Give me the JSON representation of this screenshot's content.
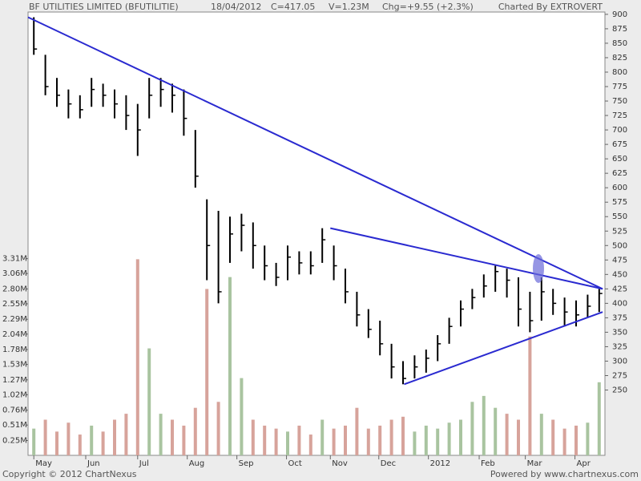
{
  "chart_data": {
    "type": "ohlc-volume",
    "title": "BF UTILITIES LIMITED (BFUTILITIE)",
    "date": "18/04/2012",
    "close_label": "C=417.05",
    "volume_label": "V=1.23M",
    "change_label": "Chg=+9.55 (+2.3%)",
    "credit": "Charted By EXTROVERT",
    "copyright": "Copyright © 2012 ChartNexus",
    "powered": "Powered by www.chartnexus.com",
    "price_color": "#000000",
    "up_color": "#a9c4a0",
    "down_color": "#d7a39b",
    "trend_color": "#2a2ad0",
    "xlim": [
      0,
      50
    ],
    "xticks": [
      {
        "value": 0.5,
        "label": "May"
      },
      {
        "value": 5,
        "label": "Jun"
      },
      {
        "value": 9.5,
        "label": "Jul"
      },
      {
        "value": 13.8,
        "label": "Aug"
      },
      {
        "value": 18.1,
        "label": "Sep"
      },
      {
        "value": 22.4,
        "label": "Oct"
      },
      {
        "value": 26.2,
        "label": "Nov"
      },
      {
        "value": 30.4,
        "label": "Dec"
      },
      {
        "value": 34.7,
        "label": "2012"
      },
      {
        "value": 39.1,
        "label": "Feb"
      },
      {
        "value": 43.1,
        "label": "Mar"
      },
      {
        "value": 47.4,
        "label": "Apr"
      }
    ],
    "ylim": [
      137,
      904
    ],
    "yticks": [
      250,
      275,
      300,
      325,
      350,
      375,
      400,
      425,
      450,
      475,
      500,
      525,
      550,
      575,
      600,
      625,
      650,
      675,
      700,
      725,
      750,
      775,
      800,
      825,
      850,
      875,
      900
    ],
    "y2lim": [
      0,
      7.46
    ],
    "y2ticks": [
      {
        "value": 0.25,
        "label": "0.25M"
      },
      {
        "value": 0.51,
        "label": "0.51M"
      },
      {
        "value": 0.76,
        "label": "0.76M"
      },
      {
        "value": 1.02,
        "label": "1.02M"
      },
      {
        "value": 1.27,
        "label": "1.27M"
      },
      {
        "value": 1.53,
        "label": "1.53M"
      },
      {
        "value": 1.78,
        "label": "1.78M"
      },
      {
        "value": 2.04,
        "label": "2.04M"
      },
      {
        "value": 2.29,
        "label": "2.29M"
      },
      {
        "value": 2.55,
        "label": "2.55M"
      },
      {
        "value": 2.8,
        "label": "2.80M"
      },
      {
        "value": 3.06,
        "label": "3.06M"
      },
      {
        "value": 3.31,
        "label": "3.31M"
      }
    ],
    "high": [
      895,
      830,
      790,
      770,
      760,
      790,
      780,
      770,
      760,
      745,
      790,
      790,
      780,
      770,
      700,
      580,
      560,
      550,
      555,
      540,
      500,
      470,
      500,
      490,
      490,
      530,
      500,
      460,
      420,
      390,
      370,
      330,
      300,
      310,
      320,
      345,
      375,
      405,
      425,
      450,
      465,
      460,
      445,
      420,
      445,
      425,
      410,
      405,
      415,
      425
    ],
    "low": [
      830,
      760,
      740,
      720,
      720,
      740,
      740,
      720,
      700,
      655,
      720,
      740,
      730,
      690,
      600,
      440,
      400,
      470,
      490,
      460,
      440,
      430,
      440,
      450,
      450,
      470,
      440,
      400,
      360,
      340,
      310,
      270,
      260,
      270,
      280,
      300,
      330,
      360,
      390,
      410,
      420,
      410,
      360,
      350,
      370,
      380,
      360,
      360,
      375,
      385
    ],
    "close": [
      840,
      775,
      760,
      745,
      735,
      770,
      760,
      745,
      725,
      700,
      760,
      770,
      760,
      720,
      620,
      500,
      420,
      520,
      535,
      500,
      465,
      445,
      480,
      470,
      465,
      510,
      465,
      420,
      380,
      355,
      330,
      290,
      270,
      290,
      305,
      330,
      360,
      390,
      410,
      430,
      455,
      440,
      390,
      370,
      420,
      400,
      385,
      380,
      395,
      417.05
    ],
    "volume": [
      0.45,
      0.6,
      0.4,
      0.55,
      0.35,
      0.5,
      0.4,
      0.6,
      0.7,
      3.3,
      1.8,
      0.7,
      0.6,
      0.5,
      0.8,
      2.8,
      0.9,
      3.0,
      1.3,
      0.6,
      0.5,
      0.45,
      0.4,
      0.5,
      0.35,
      0.6,
      0.45,
      0.5,
      0.8,
      0.45,
      0.5,
      0.6,
      0.65,
      0.4,
      0.5,
      0.45,
      0.55,
      0.6,
      0.9,
      1.0,
      0.8,
      0.7,
      0.6,
      2.0,
      0.7,
      0.6,
      0.45,
      0.5,
      0.55,
      1.23
    ],
    "trendlines": [
      {
        "x": [
          0,
          49.8
        ],
        "y": [
          895,
          425
        ]
      },
      {
        "x": [
          26.2,
          49.8
        ],
        "y": [
          530,
          425
        ]
      },
      {
        "x": [
          32.6,
          49.8
        ],
        "y": [
          260,
          385
        ]
      }
    ]
  }
}
